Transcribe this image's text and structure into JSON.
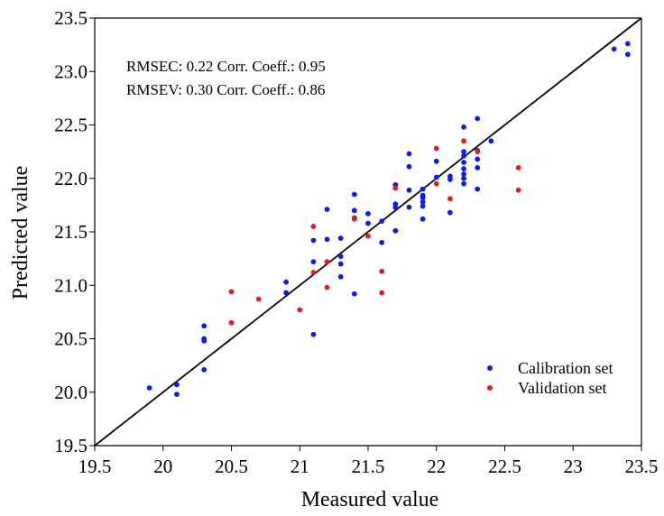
{
  "chart_data": {
    "type": "scatter",
    "xlabel": "Measured value",
    "ylabel": "Predicted value",
    "xlim": [
      19.5,
      23.5
    ],
    "ylim": [
      19.5,
      23.5
    ],
    "xticks": [
      "19.5",
      "20",
      "20.5",
      "21",
      "21.5",
      "22",
      "22.5",
      "23",
      "23.5"
    ],
    "yticks": [
      "19.5",
      "20.0",
      "20.5",
      "21.0",
      "21.5",
      "22.0",
      "22.5",
      "23.0",
      "23.5"
    ],
    "grid": false,
    "legend_position": "bottom-right",
    "annotations": [
      "RMSEC: 0.22 Corr. Coeff.: 0.95",
      "RMSEV: 0.30 Corr. Coeff.: 0.86"
    ],
    "reference_line": {
      "from": [
        19.5,
        19.5
      ],
      "to": [
        23.5,
        23.5
      ],
      "color": "#000000"
    },
    "series": [
      {
        "name": "Calibration set",
        "color": "#0a1ee6",
        "points": [
          [
            19.9,
            20.04
          ],
          [
            20.1,
            20.07
          ],
          [
            20.1,
            19.98
          ],
          [
            20.3,
            20.62
          ],
          [
            20.3,
            20.5
          ],
          [
            20.3,
            20.48
          ],
          [
            20.3,
            20.21
          ],
          [
            20.9,
            21.03
          ],
          [
            20.9,
            20.93
          ],
          [
            21.1,
            21.42
          ],
          [
            21.1,
            21.22
          ],
          [
            21.1,
            20.54
          ],
          [
            21.2,
            21.71
          ],
          [
            21.2,
            21.43
          ],
          [
            21.3,
            21.44
          ],
          [
            21.3,
            21.27
          ],
          [
            21.3,
            21.2
          ],
          [
            21.3,
            21.08
          ],
          [
            21.4,
            21.85
          ],
          [
            21.4,
            21.7
          ],
          [
            21.4,
            21.63
          ],
          [
            21.4,
            20.92
          ],
          [
            21.5,
            21.67
          ],
          [
            21.5,
            21.58
          ],
          [
            21.6,
            21.6
          ],
          [
            21.6,
            21.4
          ],
          [
            21.7,
            21.94
          ],
          [
            21.7,
            21.76
          ],
          [
            21.7,
            21.73
          ],
          [
            21.7,
            21.51
          ],
          [
            21.8,
            22.23
          ],
          [
            21.8,
            22.11
          ],
          [
            21.8,
            21.89
          ],
          [
            21.8,
            21.73
          ],
          [
            21.9,
            21.9
          ],
          [
            21.9,
            21.84
          ],
          [
            21.9,
            21.82
          ],
          [
            21.9,
            21.78
          ],
          [
            21.9,
            21.74
          ],
          [
            21.9,
            21.62
          ],
          [
            22.0,
            22.16
          ],
          [
            22.0,
            22.01
          ],
          [
            22.1,
            22.02
          ],
          [
            22.1,
            21.99
          ],
          [
            22.1,
            21.68
          ],
          [
            22.2,
            22.48
          ],
          [
            22.2,
            22.25
          ],
          [
            22.2,
            22.21
          ],
          [
            22.2,
            22.15
          ],
          [
            22.2,
            22.09
          ],
          [
            22.2,
            22.04
          ],
          [
            22.2,
            22.0
          ],
          [
            22.2,
            21.95
          ],
          [
            22.3,
            22.56
          ],
          [
            22.3,
            22.26
          ],
          [
            22.3,
            22.18
          ],
          [
            22.3,
            22.1
          ],
          [
            22.3,
            21.9
          ],
          [
            22.4,
            22.35
          ],
          [
            23.3,
            23.21
          ],
          [
            23.4,
            23.26
          ],
          [
            23.4,
            23.16
          ]
        ]
      },
      {
        "name": "Validation set",
        "color": "#e61a1a",
        "points": [
          [
            20.5,
            20.94
          ],
          [
            20.5,
            20.65
          ],
          [
            20.7,
            20.87
          ],
          [
            21.0,
            20.77
          ],
          [
            21.1,
            21.55
          ],
          [
            21.1,
            21.12
          ],
          [
            21.2,
            21.22
          ],
          [
            21.2,
            20.98
          ],
          [
            21.4,
            21.62
          ],
          [
            21.5,
            21.46
          ],
          [
            21.6,
            21.13
          ],
          [
            21.6,
            20.93
          ],
          [
            21.7,
            21.91
          ],
          [
            22.0,
            22.28
          ],
          [
            22.0,
            21.95
          ],
          [
            22.1,
            21.81
          ],
          [
            22.2,
            22.35
          ],
          [
            22.3,
            22.25
          ],
          [
            22.6,
            22.1
          ],
          [
            22.6,
            21.89
          ]
        ]
      }
    ]
  }
}
